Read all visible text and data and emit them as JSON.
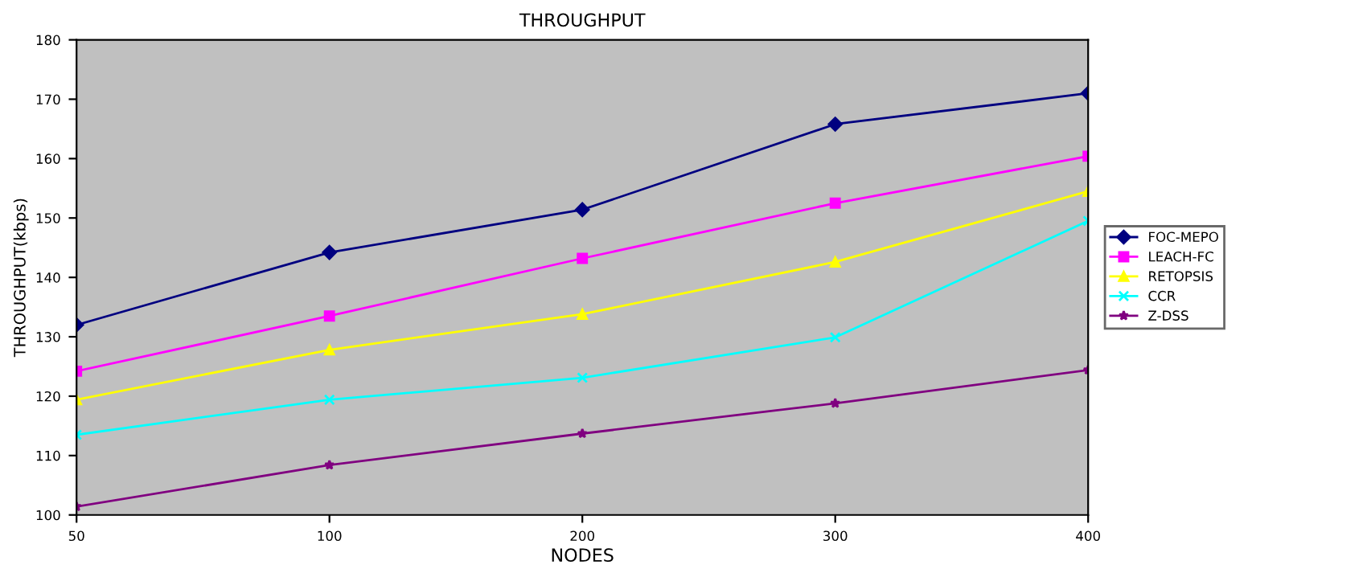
{
  "chart_data": {
    "type": "line",
    "title": "THROUGHPUT",
    "xlabel": "NODES",
    "ylabel": "THROUGHPUT(kbps)",
    "categories": [
      "50",
      "100",
      "200",
      "300",
      "400"
    ],
    "ylim": [
      100,
      180
    ],
    "yticks": [
      100,
      110,
      120,
      130,
      140,
      150,
      160,
      170,
      180
    ],
    "grid": false,
    "legend": "right",
    "series": [
      {
        "name": "FOC-MEPO",
        "color": "#000080",
        "marker": "diamond",
        "values": [
          132,
          144.2,
          151.4,
          165.8,
          171
        ]
      },
      {
        "name": "LEACH-FC",
        "color": "#ff00ff",
        "marker": "square",
        "values": [
          124.2,
          133.5,
          143.2,
          152.5,
          160.4
        ]
      },
      {
        "name": "RETOPSIS",
        "color": "#ffff00",
        "marker": "triangle",
        "values": [
          119.4,
          127.8,
          133.8,
          142.6,
          154.5
        ]
      },
      {
        "name": "CCR",
        "color": "#00ffff",
        "marker": "cross",
        "values": [
          113.5,
          119.4,
          123.1,
          129.9,
          149.5
        ]
      },
      {
        "name": "Z-DSS",
        "color": "#800080",
        "marker": "star",
        "values": [
          101.4,
          108.4,
          113.7,
          118.8,
          124.4
        ]
      }
    ]
  }
}
